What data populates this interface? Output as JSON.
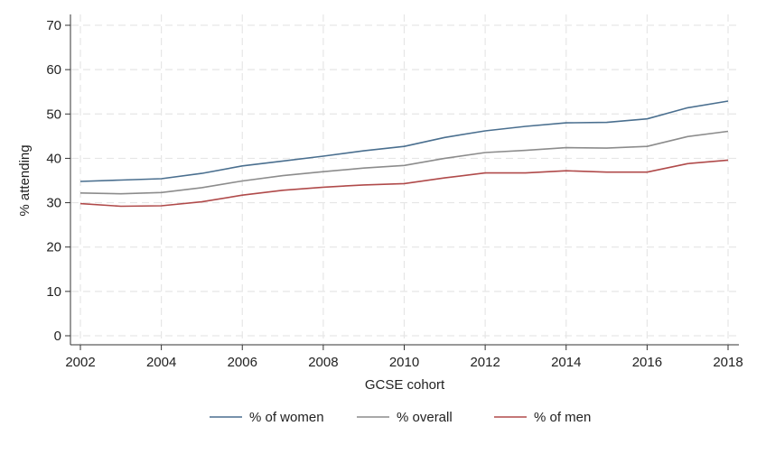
{
  "chart_data": {
    "type": "line",
    "xlabel": "GCSE cohort",
    "ylabel": "% attending",
    "x": [
      2002,
      2003,
      2004,
      2005,
      2006,
      2007,
      2008,
      2009,
      2010,
      2011,
      2012,
      2013,
      2014,
      2015,
      2016,
      2017,
      2018
    ],
    "xlim": [
      2002,
      2018
    ],
    "ylim": [
      0,
      70
    ],
    "xticks": [
      2002,
      2004,
      2006,
      2008,
      2010,
      2012,
      2014,
      2016,
      2018
    ],
    "yticks": [
      0,
      10,
      20,
      30,
      40,
      50,
      60,
      70
    ],
    "grid": true,
    "legend_position": "bottom",
    "series": [
      {
        "name": "% of women",
        "color": "#4a6f8f",
        "values": [
          34.8,
          35.1,
          35.4,
          36.6,
          38.3,
          39.4,
          40.5,
          41.7,
          42.7,
          44.7,
          46.2,
          47.2,
          48.0,
          48.1,
          48.9,
          51.4,
          52.9
        ]
      },
      {
        "name": "% overall",
        "color": "#8c8c8c",
        "values": [
          32.2,
          32.0,
          32.3,
          33.4,
          34.9,
          36.1,
          37.0,
          37.8,
          38.4,
          40.0,
          41.3,
          41.8,
          42.4,
          42.3,
          42.7,
          44.9,
          46.1
        ]
      },
      {
        "name": "% of men",
        "color": "#b04a4a",
        "values": [
          29.8,
          29.2,
          29.3,
          30.2,
          31.7,
          32.8,
          33.5,
          34.0,
          34.3,
          35.6,
          36.7,
          36.7,
          37.2,
          36.9,
          36.9,
          38.8,
          39.6
        ]
      }
    ]
  }
}
